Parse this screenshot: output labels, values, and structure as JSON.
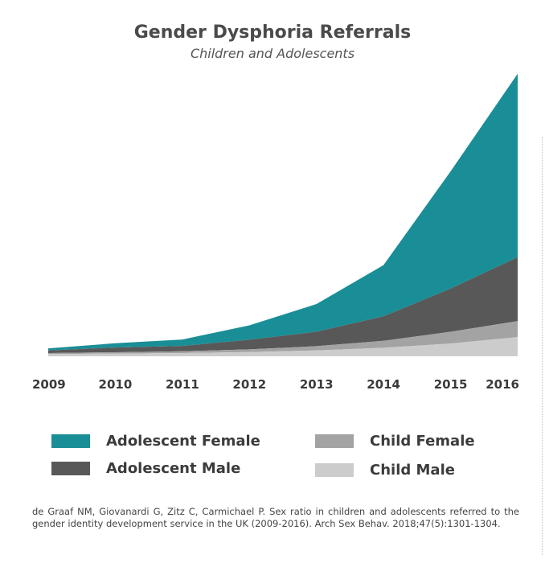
{
  "chart_data": {
    "type": "area",
    "stacked": true,
    "title": "Gender Dysphoria Referrals",
    "subtitle": "Children and Adolescents",
    "x": [
      "2009",
      "2010",
      "2011",
      "2012",
      "2013",
      "2014",
      "2015",
      "2016"
    ],
    "series": [
      {
        "name": "Child Male",
        "color": "#cccccc",
        "values": [
          8,
          10,
          12,
          16,
          22,
          32,
          48,
          72
        ]
      },
      {
        "name": "Child Female",
        "color": "#a3a3a3",
        "values": [
          4,
          5,
          7,
          10,
          16,
          26,
          44,
          60
        ]
      },
      {
        "name": "Adolescent Male",
        "color": "#585858",
        "values": [
          10,
          18,
          20,
          36,
          54,
          92,
          162,
          240
        ]
      },
      {
        "name": "Adolescent Female",
        "color": "#1a8e96",
        "values": [
          8,
          16,
          24,
          54,
          104,
          192,
          440,
          688
        ]
      }
    ],
    "ylim": [
      0,
      1080
    ],
    "grid": false,
    "legend_position": "bottom"
  },
  "legend": [
    {
      "label": "Adolescent Female",
      "color": "#1a8e96"
    },
    {
      "label": "Adolescent Male",
      "color": "#585858"
    },
    {
      "label": "Child Female",
      "color": "#a3a3a3"
    },
    {
      "label": "Child Male",
      "color": "#cccccc"
    }
  ],
  "citation": "de Graaf NM, Giovanardi G, Zitz C, Carmichael P. Sex ratio in children and adolescents referred to the gender identity development service in the UK (2009-2016). Arch Sex Behav. 2018;47(5):1301-1304."
}
